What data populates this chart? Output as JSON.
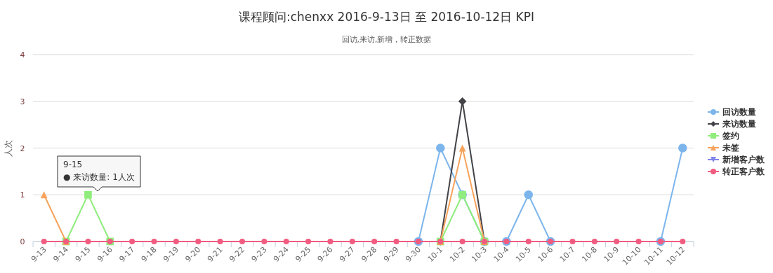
{
  "chart_data": {
    "type": "line",
    "title": "课程顾问:chenxx 2016-9-13日 至 2016-10-12日 KPI",
    "subtitle": "回访,来访,新增，转正数据",
    "ylabel": "人次",
    "categories": [
      "9-13",
      "9-14",
      "9-15",
      "9-16",
      "9-17",
      "9-18",
      "9-19",
      "9-20",
      "9-21",
      "9-22",
      "9-23",
      "9-24",
      "9-25",
      "9-26",
      "9-27",
      "9-28",
      "9-29",
      "9-30",
      "10-1",
      "10-2",
      "10-3",
      "10-4",
      "10-5",
      "10-6",
      "10-7",
      "10-8",
      "10-9",
      "10-10",
      "10-11",
      "10-12"
    ],
    "series": [
      {
        "name": "回访数量",
        "color": "#7cb5ec",
        "marker": "circle",
        "values": [
          null,
          null,
          null,
          null,
          null,
          null,
          null,
          null,
          null,
          null,
          null,
          null,
          null,
          null,
          null,
          null,
          null,
          0,
          2,
          1,
          0,
          0,
          1,
          0,
          null,
          null,
          null,
          null,
          0,
          2
        ]
      },
      {
        "name": "来访数量",
        "color": "#434348",
        "marker": "diamond",
        "values": [
          null,
          null,
          null,
          null,
          null,
          null,
          null,
          null,
          null,
          null,
          null,
          null,
          null,
          null,
          null,
          null,
          null,
          null,
          0,
          3,
          0,
          null,
          null,
          null,
          null,
          null,
          null,
          null,
          null,
          null
        ]
      },
      {
        "name": "签约",
        "color": "#90ed7d",
        "marker": "square",
        "values": [
          null,
          0,
          1,
          0,
          null,
          null,
          null,
          null,
          null,
          null,
          null,
          null,
          null,
          null,
          null,
          null,
          null,
          null,
          0,
          1,
          0,
          null,
          null,
          null,
          null,
          null,
          null,
          null,
          null,
          null
        ]
      },
      {
        "name": "未签",
        "color": "#f7a35c",
        "marker": "triangle",
        "values": [
          1,
          0,
          null,
          null,
          null,
          null,
          null,
          null,
          null,
          null,
          null,
          null,
          null,
          null,
          null,
          null,
          null,
          null,
          0,
          2,
          0,
          null,
          null,
          null,
          null,
          null,
          null,
          null,
          null,
          null
        ]
      },
      {
        "name": "新增客户数",
        "color": "#8085e9",
        "marker": "triangle-down",
        "values": [
          null,
          null,
          null,
          null,
          null,
          null,
          null,
          null,
          null,
          null,
          null,
          null,
          null,
          null,
          null,
          null,
          null,
          null,
          null,
          null,
          null,
          null,
          null,
          null,
          null,
          null,
          null,
          null,
          null,
          null
        ]
      },
      {
        "name": "转正客户数",
        "color": "#f15c80",
        "marker": "circle",
        "values": [
          0,
          0,
          0,
          0,
          0,
          0,
          0,
          0,
          0,
          0,
          0,
          0,
          0,
          0,
          0,
          0,
          0,
          0,
          0,
          0,
          0,
          0,
          0,
          0,
          0,
          0,
          0,
          0,
          0,
          0
        ]
      }
    ],
    "ylim": [
      0,
      4
    ],
    "yticks": [
      0,
      1,
      2,
      3,
      4
    ],
    "grid": "y",
    "legend": "right",
    "annotations": [
      "9-15",
      "● 来访数量: 1人次"
    ]
  }
}
